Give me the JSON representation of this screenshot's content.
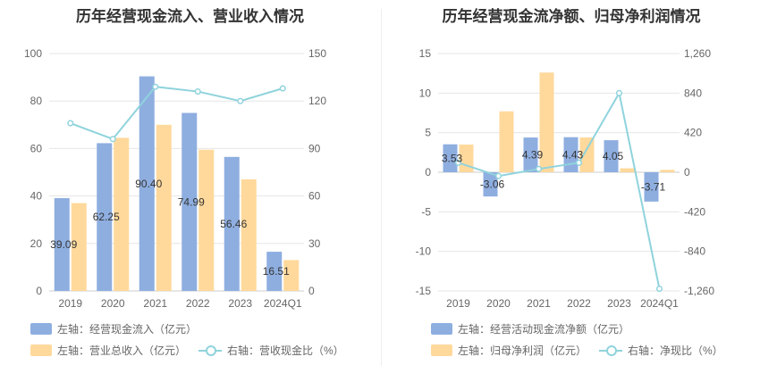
{
  "chart_data": [
    {
      "type": "bar",
      "title": "历年经营现金流入、营业收入情况",
      "categories": [
        "2019",
        "2020",
        "2021",
        "2022",
        "2023",
        "2024Q1"
      ],
      "series": [
        {
          "name": "左轴：经营现金流入（亿元）",
          "axis": "left",
          "type": "bar",
          "color": "#8eaee0",
          "values": [
            39.09,
            62.25,
            90.4,
            74.99,
            56.46,
            16.51
          ],
          "labels": [
            "39.09",
            "62.25",
            "90.40",
            "74.99",
            "56.46",
            "16.51"
          ]
        },
        {
          "name": "左轴：营业总收入（亿元）",
          "axis": "left",
          "type": "bar",
          "color": "#ffd99c",
          "values": [
            37,
            64.5,
            70,
            59.5,
            47,
            13
          ]
        },
        {
          "name": "右轴：营收现金比（%）",
          "axis": "right",
          "type": "line",
          "color": "#8fd3dc",
          "values": [
            106,
            96,
            129,
            126,
            120,
            128
          ]
        }
      ],
      "left_axis": {
        "min": 0,
        "max": 100,
        "ticks": [
          "0",
          "20",
          "40",
          "60",
          "80",
          "100"
        ]
      },
      "right_axis": {
        "min": 0,
        "max": 150,
        "ticks": [
          "0",
          "30",
          "60",
          "90",
          "120",
          "150"
        ]
      },
      "grid": true,
      "legend_position": "bottom-left"
    },
    {
      "type": "bar",
      "title": "历年经营现金流净额、归母净利润情况",
      "categories": [
        "2019",
        "2020",
        "2021",
        "2022",
        "2023",
        "2024Q1"
      ],
      "series": [
        {
          "name": "左轴：经营活动现金流净额（亿元）",
          "axis": "left",
          "type": "bar",
          "color": "#8eaee0",
          "values": [
            3.53,
            -3.06,
            4.39,
            4.43,
            4.05,
            -3.71
          ],
          "labels": [
            "3.53",
            "-3.06",
            "4.39",
            "4.43",
            "4.05",
            "-3.71"
          ]
        },
        {
          "name": "左轴：归母净利润（亿元）",
          "axis": "left",
          "type": "bar",
          "color": "#ffd99c",
          "values": [
            3.5,
            7.7,
            12.6,
            4.4,
            0.5,
            0.3
          ]
        },
        {
          "name": "右轴：净现比（%）",
          "axis": "right",
          "type": "line",
          "color": "#8fd3dc",
          "values": [
            101,
            -40,
            35,
            101,
            840,
            -1237
          ]
        }
      ],
      "left_axis": {
        "min": -15,
        "max": 15,
        "ticks": [
          "-15",
          "-10",
          "-5",
          "0",
          "5",
          "10",
          "15"
        ]
      },
      "right_axis": {
        "min": -1260,
        "max": 1260,
        "ticks": [
          "-1,260",
          "-840",
          "-420",
          "0",
          "420",
          "840",
          "1,260"
        ]
      },
      "grid": true,
      "legend_position": "bottom-left"
    }
  ]
}
